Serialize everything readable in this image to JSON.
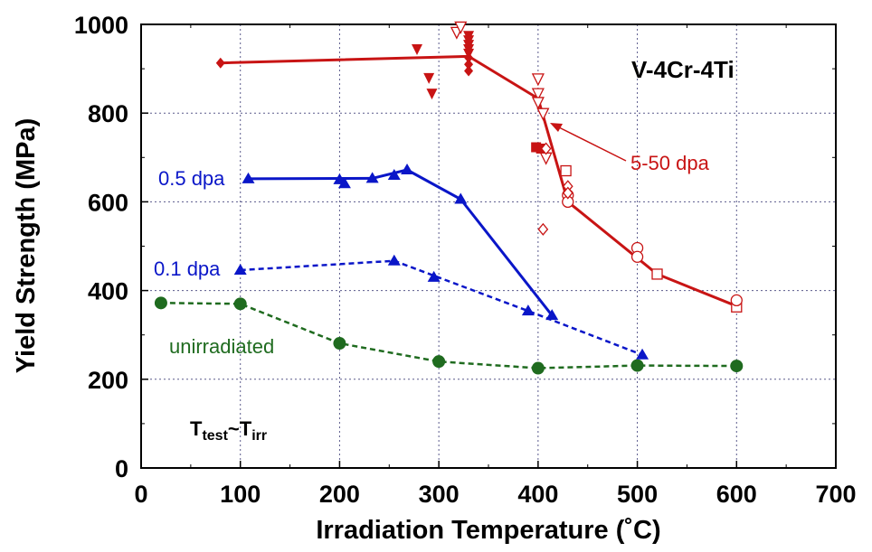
{
  "chart_data": {
    "type": "scatter",
    "xlabel": "Irradiation Temperature (˚C)",
    "ylabel": "Yield Strength (MPa)",
    "xlim": [
      0,
      700
    ],
    "ylim": [
      0,
      1000
    ],
    "x_ticks": [
      "0",
      "100",
      "200",
      "300",
      "400",
      "500",
      "600",
      "700"
    ],
    "y_ticks": [
      "0",
      "200",
      "400",
      "600",
      "800",
      "1000"
    ],
    "grid": true,
    "annotations": {
      "alloy": "V-4Cr-4Ti",
      "condition_main": "T",
      "condition_sub1": "test",
      "condition_mid": "~T",
      "condition_sub2": "irr",
      "label_unirr": "unirradiated",
      "label_01": "0.1 dpa",
      "label_05": "0.5 dpa",
      "label_high": "5-50 dpa"
    },
    "series": [
      {
        "name": "unirradiated",
        "color": "#1f6b1f",
        "line": "dashed",
        "marker": "circle-filled",
        "points": [
          [
            20,
            372
          ],
          [
            100,
            370
          ],
          [
            200,
            281
          ],
          [
            300,
            240
          ],
          [
            400,
            225
          ],
          [
            500,
            231
          ],
          [
            600,
            230
          ]
        ]
      },
      {
        "name": "0.1 dpa",
        "color": "#0a16c8",
        "line": "dashed",
        "marker": "triangle-filled",
        "points": [
          [
            100,
            446
          ],
          [
            255,
            467
          ],
          [
            295,
            430
          ],
          [
            390,
            354
          ],
          [
            505,
            255
          ]
        ],
        "line_points": [
          [
            100,
            446
          ],
          [
            255,
            467
          ],
          [
            390,
            354
          ],
          [
            505,
            255
          ]
        ]
      },
      {
        "name": "0.5 dpa",
        "color": "#0a16c8",
        "line": "solid",
        "marker": "triangle-filled",
        "points": [
          [
            108,
            652
          ],
          [
            200,
            650
          ],
          [
            205,
            641
          ],
          [
            233,
            653
          ],
          [
            255,
            660
          ],
          [
            268,
            672
          ],
          [
            322,
            606
          ],
          [
            414,
            344
          ]
        ],
        "line_points": [
          [
            108,
            652
          ],
          [
            233,
            653
          ],
          [
            268,
            672
          ],
          [
            322,
            606
          ],
          [
            414,
            344
          ]
        ]
      },
      {
        "name": "5-50 dpa",
        "color": "#c81414",
        "line": "solid",
        "line_points": [
          [
            80,
            913
          ],
          [
            330,
            928
          ],
          [
            400,
            833
          ],
          [
            430,
            600
          ],
          [
            520,
            437
          ],
          [
            600,
            365
          ]
        ],
        "diamond_filled": [
          [
            80,
            913
          ],
          [
            330,
            895
          ],
          [
            330,
            910
          ],
          [
            330,
            925
          ]
        ],
        "tri_down_filled": [
          [
            278,
            945
          ],
          [
            290,
            880
          ],
          [
            293,
            845
          ],
          [
            330,
            975
          ],
          [
            330,
            965
          ],
          [
            330,
            955
          ],
          [
            330,
            945
          ],
          [
            330,
            935
          ]
        ],
        "tri_down_open": [
          [
            318,
            983
          ],
          [
            322,
            995
          ],
          [
            400,
            878
          ],
          [
            400,
            845
          ],
          [
            400,
            825
          ],
          [
            405,
            800
          ],
          [
            408,
            700
          ]
        ],
        "square_filled": [
          [
            398,
            723
          ],
          [
            403,
            720
          ]
        ],
        "square_open": [
          [
            428,
            670
          ],
          [
            520,
            437
          ],
          [
            600,
            363
          ]
        ],
        "circle_open": [
          [
            430,
            615
          ],
          [
            430,
            600
          ],
          [
            500,
            496
          ],
          [
            500,
            476
          ],
          [
            600,
            378
          ]
        ],
        "diamond_open": [
          [
            405,
            538
          ],
          [
            430,
            635
          ],
          [
            430,
            620
          ],
          [
            408,
            720
          ]
        ]
      }
    ]
  }
}
